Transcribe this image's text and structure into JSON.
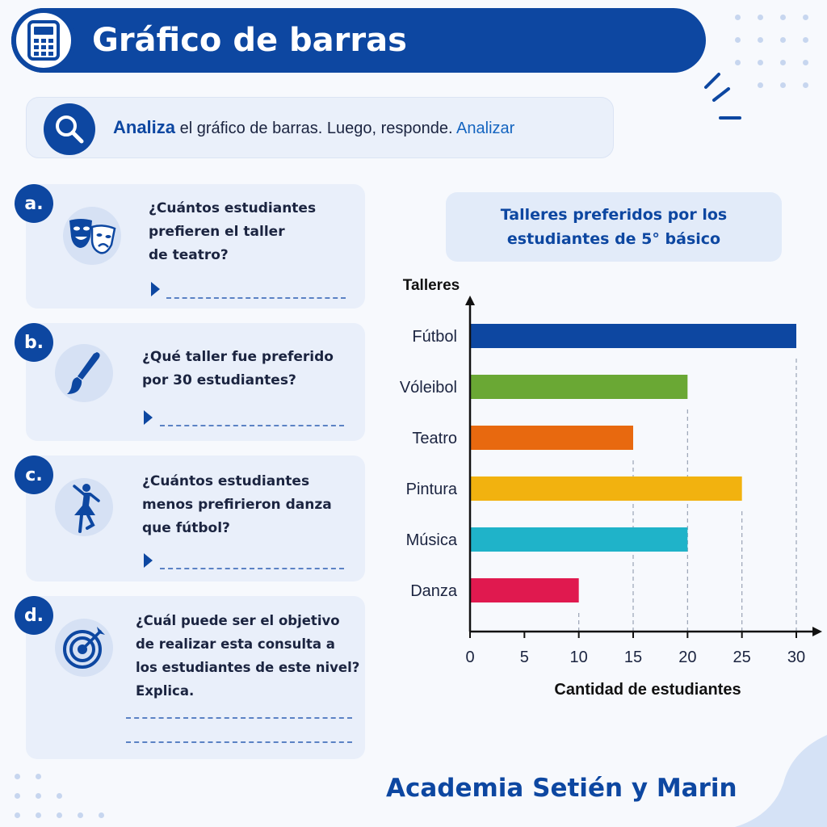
{
  "header": {
    "title": "Gráfico de barras",
    "icon": "calculator-icon"
  },
  "instruction": {
    "bold": "Analiza",
    "text": " el gráfico de barras. Luego, responde.",
    "link": "Analizar",
    "icon": "magnifier-icon"
  },
  "questions": [
    {
      "letter": "a.",
      "icon": "theater-masks-icon",
      "lines": [
        "¿Cuántos estudiantes",
        "prefieren el taller",
        "de teatro?"
      ]
    },
    {
      "letter": "b.",
      "icon": "paintbrush-icon",
      "lines": [
        "¿Qué taller fue preferido",
        "por 30 estudiantes?"
      ]
    },
    {
      "letter": "c.",
      "icon": "dancer-icon",
      "lines": [
        "¿Cuántos estudiantes",
        "menos prefirieron danza",
        "que fútbol?"
      ]
    },
    {
      "letter": "d.",
      "icon": "target-icon",
      "lines": [
        "¿Cuál puede ser el objetivo",
        "de realizar esta consulta a",
        "los estudiantes de este nivel?",
        "Explica."
      ]
    }
  ],
  "chart_data": {
    "type": "bar",
    "orientation": "horizontal",
    "title_lines": [
      "Talleres preferidos por los",
      "estudiantes de 5° básico"
    ],
    "categories": [
      "Fútbol",
      "Vóleibol",
      "Teatro",
      "Pintura",
      "Música",
      "Danza"
    ],
    "values": [
      30,
      20,
      15,
      25,
      20,
      10
    ],
    "colors": [
      "#0d47a1",
      "#6aa834",
      "#e8690f",
      "#f2b20f",
      "#1fb3c9",
      "#e0194f"
    ],
    "xlabel": "Cantidad de estudiantes",
    "ylabel": "Talleres",
    "xlim": [
      0,
      30
    ],
    "xticks": [
      0,
      5,
      10,
      15,
      20,
      25,
      30
    ],
    "grid": "dashed-at-bar-ends"
  },
  "footer": {
    "text": "Academia Setién y Marin"
  },
  "colors": {
    "primary": "#0d47a1",
    "card_bg": "#e9effa"
  }
}
